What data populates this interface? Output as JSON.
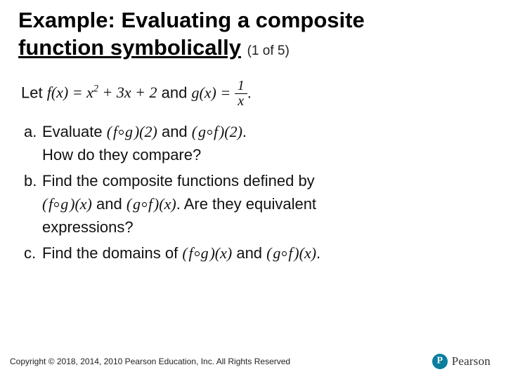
{
  "title": {
    "line1": "Example: Evaluating a composite",
    "line2_underlined": "function symbolically",
    "pager": "(1 of 5)"
  },
  "intro": {
    "prefix": "Let ",
    "f_def_lhs": "f",
    "f_def_var": "x",
    "f_def_rhs_a": "x",
    "f_def_rhs_sq": "2",
    "f_def_rhs_b": " + 3",
    "f_def_rhs_c": " + 2",
    "and_text": " and ",
    "g_def_lhs": "g",
    "g_def_var": "x",
    "frac_num": "1",
    "frac_den": "x",
    "period": "."
  },
  "items": {
    "a": {
      "letter": "a.",
      "text1_pre": "Evaluate ",
      "fg_arg": "2",
      "and": " and ",
      "gf_arg": "2",
      "text1_post": ".",
      "text2": "How do they compare?"
    },
    "b": {
      "letter": "b.",
      "text1": "Find the composite functions defined by",
      "fg_var": "x",
      "and": " and ",
      "gf_var": "x",
      "text2_post": ". Are they equivalent",
      "text3": "expressions?"
    },
    "c": {
      "letter": "c.",
      "text_pre": "Find the domains of ",
      "fg_var": "x",
      "and": " and ",
      "gf_var": "x",
      "text_post": "."
    }
  },
  "footer": "Copyright © 2018, 2014, 2010 Pearson Education, Inc. All Rights Reserved",
  "logo_text": "Pearson"
}
